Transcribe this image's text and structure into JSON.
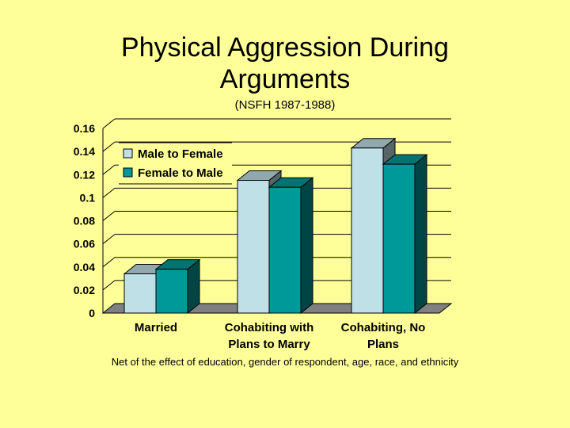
{
  "title_line1": "Physical Aggression During",
  "title_line2": "Arguments",
  "subtitle": "(NSFH 1987-1988)",
  "footnote": "Net of the effect of education, gender of respondent, age, race, and ethnicity",
  "colors": {
    "background": "#ffff99",
    "male_to_female": "#c0e0e8",
    "female_to_male": "#009999",
    "floor": "#808080"
  },
  "chart_data": {
    "type": "bar",
    "title": "Physical Aggression During Arguments",
    "subtitle": "(NSFH 1987-1988)",
    "categories": [
      [
        "Married"
      ],
      [
        "Cohabiting with",
        "Plans to Marry"
      ],
      [
        "Cohabiting, No",
        "Plans"
      ]
    ],
    "series": [
      {
        "name": "Male to Female",
        "values": [
          0.034,
          0.115,
          0.143
        ],
        "color": "#c0e0e8"
      },
      {
        "name": "Female to Male",
        "values": [
          0.038,
          0.109,
          0.129
        ],
        "color": "#009999"
      }
    ],
    "yticks": [
      "0",
      "0.02",
      "0.04",
      "0.06",
      "0.08",
      "0.1",
      "0.12",
      "0.14",
      "0.16"
    ],
    "ylim": [
      0,
      0.16
    ],
    "grid": true,
    "legend_position": "top-left",
    "three_d": true
  }
}
